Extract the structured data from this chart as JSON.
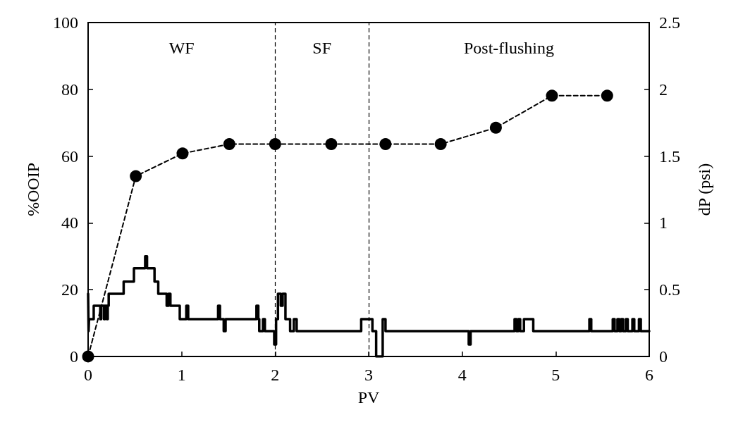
{
  "chart_data": {
    "type": "line",
    "xlabel": "PV",
    "ylabel": "%OOIP",
    "y2label": "dP (psi)",
    "xlim": [
      0,
      6
    ],
    "xticks": [
      0,
      1,
      2,
      3,
      4,
      5,
      6
    ],
    "ylim": [
      0,
      100
    ],
    "yticks": [
      0,
      20,
      40,
      60,
      80,
      100
    ],
    "y2lim": [
      0,
      2.5
    ],
    "y2ticks": [
      0,
      0.5,
      1,
      1.5,
      2,
      2.5
    ],
    "grid": false,
    "series": [
      {
        "type": "line",
        "color": "#000000",
        "marker": "circle",
        "line_style": "dashed",
        "x": [
          0,
          0.51,
          1.01,
          1.51,
          2.0,
          2.6,
          3.18,
          3.77,
          4.36,
          4.96,
          5.55
        ],
        "values": [
          0,
          54,
          60.8,
          63.6,
          63.6,
          63.6,
          63.6,
          63.6,
          68.5,
          78.1,
          78.1
        ]
      },
      {
        "type": "step",
        "axis": "y2",
        "color": "#000000",
        "marker": "none",
        "line_style": "solid",
        "x": [
          0,
          0.005,
          0.01,
          0.06,
          0.13,
          0.14,
          0.17,
          0.18,
          0.2,
          0.21,
          0.22,
          0.38,
          0.49,
          0.61,
          0.63,
          0.71,
          0.75,
          0.84,
          0.86,
          0.88,
          0.98,
          1.05,
          1.07,
          1.39,
          1.41,
          1.45,
          1.47,
          1.8,
          1.82,
          1.83,
          1.87,
          1.89,
          1.99,
          2.01,
          2.03,
          2.06,
          2.08,
          2.11,
          2.16,
          2.2,
          2.23,
          2.92,
          3.04,
          3.08,
          3.15,
          3.18,
          4.07,
          4.09,
          4.56,
          4.58,
          4.6,
          4.62,
          4.66,
          4.76,
          5.36,
          5.38,
          5.61,
          5.63,
          5.66,
          5.68,
          5.7,
          5.72,
          5.75,
          5.77,
          5.82,
          5.84,
          5.89,
          5.91,
          6.0
        ],
        "values": [
          0.47,
          0.19,
          0.28,
          0.38,
          0.28,
          0.38,
          0.28,
          0.38,
          0.28,
          0.38,
          0.47,
          0.56,
          0.66,
          0.75,
          0.66,
          0.56,
          0.47,
          0.38,
          0.47,
          0.38,
          0.28,
          0.38,
          0.28,
          0.38,
          0.28,
          0.19,
          0.28,
          0.38,
          0.28,
          0.19,
          0.28,
          0.19,
          0.09,
          0.28,
          0.47,
          0.38,
          0.47,
          0.28,
          0.19,
          0.28,
          0.19,
          0.28,
          0.19,
          0,
          0.28,
          0.19,
          0.09,
          0.19,
          0.28,
          0.19,
          0.28,
          0.19,
          0.28,
          0.19,
          0.28,
          0.19,
          0.28,
          0.19,
          0.28,
          0.19,
          0.28,
          0.19,
          0.28,
          0.19,
          0.28,
          0.19,
          0.28,
          0.19,
          0.19
        ]
      }
    ],
    "ref_lines": [
      {
        "axis": "x",
        "value": 2,
        "line_style": "dashed",
        "color": "#000000"
      },
      {
        "axis": "x",
        "value": 3,
        "line_style": "dashed",
        "color": "#000000"
      }
    ],
    "annotations": [
      "WF",
      "SF",
      "Post-flushing"
    ]
  }
}
